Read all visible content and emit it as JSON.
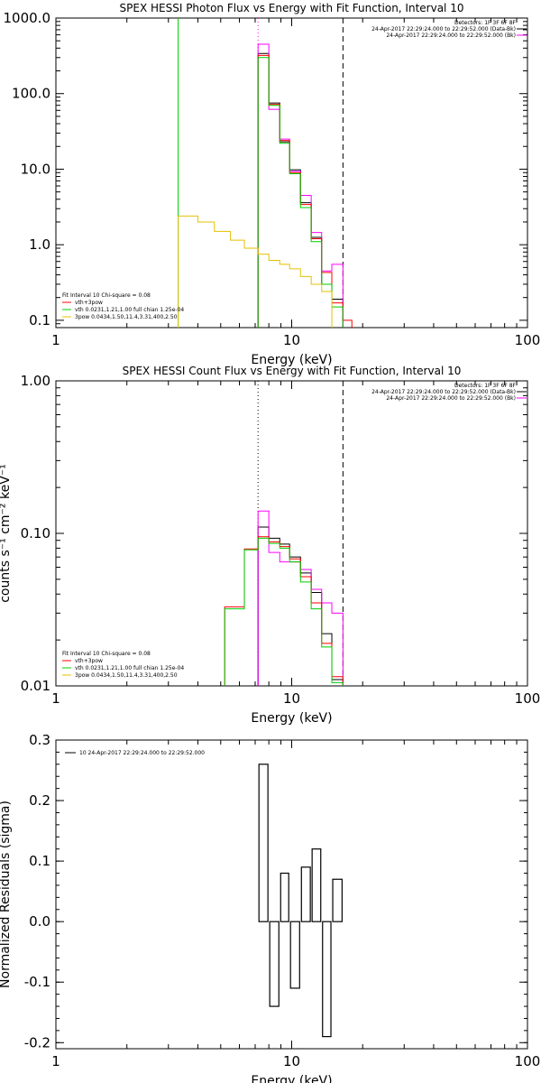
{
  "colors": {
    "black": "#000000",
    "red": "#ff0000",
    "magenta": "#ff00ff",
    "green": "#00cc00",
    "yellow": "#e6c000"
  },
  "chart_data": [
    {
      "type": "line",
      "title": "SPEX HESSI Photon Flux vs Energy with Fit Function, Interval 10",
      "xlabel": "Energy (keV)",
      "ylabel": "",
      "xscale": "log",
      "yscale": "log",
      "xlim": [
        1,
        100
      ],
      "ylim": [
        0.08,
        1000
      ],
      "xticks": [
        "1",
        "10",
        "100"
      ],
      "yticks": [
        "0.1",
        "1.0",
        "10.0",
        "100.0",
        "1000.0"
      ],
      "vlines": [
        {
          "x": 3.3,
          "style": "solid",
          "color": "green"
        },
        {
          "x": 7.2,
          "style": "dotted",
          "color": "magenta"
        },
        {
          "x": 16.5,
          "style": "dashed",
          "color": "black"
        }
      ],
      "legend_right": [
        "Detectors: 1F 3F 6F 8F",
        "24-Apr-2017 22:29:24.000 to 22:29:52.000 (Data-Bk)",
        "24-Apr-2017 22:29:24.000 to 22:29:52.000 (Bk)"
      ],
      "legend_left": [
        "Fit Interval 10   Chi-square = 0.08",
        "vth+3pow",
        "vth 0.0231,1.21,1.00  full chian 1.25e-04",
        "3pow 0.0434,1.50,11.4,3.31,400,2.50"
      ],
      "series": [
        {
          "name": "Data-Bk",
          "color": "black",
          "edges": [
            7.2,
            8.0,
            8.9,
            9.8,
            10.9,
            12.1,
            13.4,
            14.8,
            16.5
          ],
          "values": [
            340,
            75,
            23,
            9.8,
            3.6,
            1.25,
            0.3,
            0.19
          ]
        },
        {
          "name": "Bk",
          "color": "magenta",
          "edges": [
            7.2,
            8.0,
            8.9,
            9.8,
            10.9,
            12.1,
            13.4,
            14.8,
            16.5
          ],
          "values": [
            450,
            62,
            25,
            9.4,
            4.5,
            1.45,
            0.45,
            0.55
          ]
        },
        {
          "name": "fit",
          "color": "red",
          "edges": [
            7.2,
            8.0,
            8.9,
            9.8,
            10.9,
            12.1,
            13.4,
            14.8,
            16.5,
            18.0
          ],
          "values": [
            320,
            72,
            24,
            9.0,
            3.4,
            1.2,
            0.43,
            0.17,
            0.1
          ]
        },
        {
          "name": "vth+3pow",
          "color": "green",
          "edges": [
            7.2,
            8.0,
            8.9,
            9.8,
            10.9,
            12.1,
            13.4,
            14.8,
            16.5
          ],
          "values": [
            300,
            70,
            22,
            8.7,
            3.1,
            1.1,
            0.3,
            0.15
          ]
        },
        {
          "name": "3pow",
          "color": "yellow",
          "edges": [
            3.3,
            4.0,
            4.7,
            5.5,
            6.3,
            7.2,
            8.0,
            8.9,
            9.8,
            10.9,
            12.1,
            13.4,
            14.8
          ],
          "values": [
            2.4,
            2.0,
            1.5,
            1.15,
            0.9,
            0.75,
            0.62,
            0.55,
            0.48,
            0.38,
            0.3,
            0.24
          ]
        }
      ]
    },
    {
      "type": "line",
      "title": "SPEX HESSI Count Flux vs Energy with Fit Function, Interval 10",
      "xlabel": "Energy (keV)",
      "ylabel": "counts s⁻¹ cm⁻² keV⁻¹",
      "xscale": "log",
      "yscale": "log",
      "xlim": [
        1,
        100
      ],
      "ylim": [
        0.01,
        1
      ],
      "xticks": [
        "1",
        "10",
        "100"
      ],
      "yticks": [
        "0.01",
        "0.10",
        "1.00"
      ],
      "vlines": [
        {
          "x": 7.2,
          "style": "dotted",
          "color": "black"
        },
        {
          "x": 7.2,
          "style": "solid",
          "color": "magenta",
          "from": 0.01,
          "to": 0.09
        },
        {
          "x": 16.5,
          "style": "dashed",
          "color": "black"
        }
      ],
      "legend_right": [
        "Detectors: 1F 3F 6F 8F",
        "24-Apr-2017 22:29:24.000 to 22:29:52.000 (Data-Bk)",
        "24-Apr-2017 22:29:24.000 to 22:29:52.000 (Bk)"
      ],
      "legend_left": [
        "Fit Interval 10   Chi-square = 0.08",
        "vth+3pow",
        "vth 0.0231,1.21,1.00  full chian 1.25e-04",
        "3pow 0.0434,1.50,11.4,3.31,400,2.50"
      ],
      "series": [
        {
          "name": "Data-Bk",
          "color": "black",
          "edges": [
            7.2,
            8.0,
            8.9,
            9.8,
            10.9,
            12.1,
            13.4,
            14.8,
            16.5
          ],
          "values": [
            0.11,
            0.093,
            0.085,
            0.07,
            0.055,
            0.041,
            0.022,
            0.011
          ]
        },
        {
          "name": "Bk",
          "color": "magenta",
          "edges": [
            7.2,
            8.0,
            8.9,
            9.8,
            10.9,
            12.1,
            13.4,
            14.8,
            16.5
          ],
          "values": [
            0.14,
            0.075,
            0.065,
            0.065,
            0.058,
            0.043,
            0.035,
            0.03
          ]
        },
        {
          "name": "fit",
          "color": "red",
          "edges": [
            5.2,
            6.3,
            7.2,
            8.0,
            8.9,
            9.8,
            10.9,
            12.1,
            13.4,
            14.8,
            16.5
          ],
          "values": [
            0.033,
            0.079,
            0.095,
            0.088,
            0.082,
            0.068,
            0.052,
            0.035,
            0.019,
            0.0115
          ]
        },
        {
          "name": "vth+3pow",
          "color": "green",
          "edges": [
            5.2,
            6.3,
            7.2,
            8.0,
            8.9,
            9.8,
            10.9,
            12.1,
            13.4,
            14.8,
            16.5
          ],
          "values": [
            0.032,
            0.078,
            0.093,
            0.086,
            0.08,
            0.065,
            0.048,
            0.032,
            0.018,
            0.0105
          ]
        },
        {
          "name": "3pow",
          "color": "yellow",
          "edges": [
            5.2,
            6.3,
            7.2,
            8.0,
            8.9,
            9.8,
            10.9,
            12.1,
            13.4,
            14.8,
            16.5
          ],
          "values": [
            0.0,
            0.0,
            0.0,
            0.0,
            0.0,
            0.0,
            0.0,
            0.0,
            0.0,
            0.0
          ]
        }
      ]
    },
    {
      "type": "bar",
      "title": "",
      "xlabel": "Energy (keV)",
      "ylabel": "Normalized Residuals (sigma)",
      "xscale": "log",
      "yscale": "linear",
      "xlim": [
        1,
        100
      ],
      "ylim": [
        -0.21,
        0.3
      ],
      "xticks": [
        "1",
        "10",
        "100"
      ],
      "yticks": [
        "-0.2",
        "-0.1",
        "0.0",
        "0.1",
        "0.2",
        "0.3"
      ],
      "legend_left": [
        "10  24-Apr-2017 22:29:24.000 to 22:29:52.000"
      ],
      "series": [
        {
          "name": "10  24-Apr-2017 22:29:24.000 to 22:29:52.000",
          "color": "black",
          "edges": [
            7.2,
            8.0,
            8.9,
            9.8,
            10.9,
            12.1,
            13.4,
            14.8,
            16.5
          ],
          "values": [
            0.26,
            -0.14,
            0.08,
            -0.11,
            0.09,
            0.12,
            -0.19,
            0.07
          ]
        }
      ]
    }
  ]
}
